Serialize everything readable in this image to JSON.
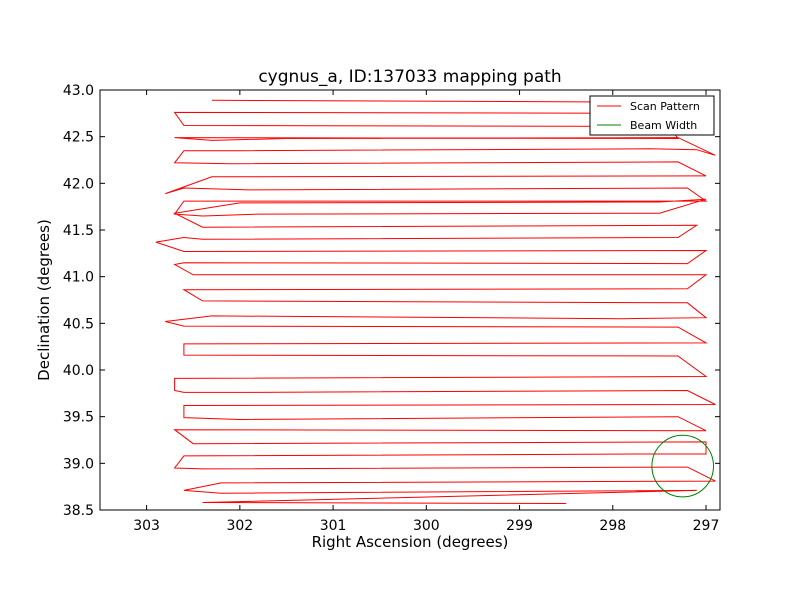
{
  "chart_data": {
    "type": "line",
    "title": "cygnus_a, ID:137033 mapping path",
    "xlabel": "Right Ascension (degrees)",
    "ylabel": "Declination (degrees)",
    "xlim": [
      303.5,
      296.85
    ],
    "ylim": [
      38.5,
      43.0
    ],
    "x_inverted": true,
    "xticks": [
      303,
      302,
      301,
      300,
      299,
      298,
      297
    ],
    "xtick_labels": [
      "303",
      "302",
      "301",
      "300",
      "299",
      "298",
      "297"
    ],
    "yticks": [
      38.5,
      39.0,
      39.5,
      40.0,
      40.5,
      41.0,
      41.5,
      42.0,
      42.5,
      43.0
    ],
    "ytick_labels": [
      "38.5",
      "39.0",
      "39.5",
      "40.0",
      "40.5",
      "41.0",
      "41.5",
      "42.0",
      "42.5",
      "43.0"
    ],
    "grid": false,
    "legend_position": "top-right",
    "series": [
      {
        "name": "Scan Pattern",
        "color": "#ff0000",
        "description_rows": 17,
        "points": [
          [
            302.3,
            42.89
          ],
          [
            297.7,
            42.87
          ],
          [
            297.3,
            42.75
          ],
          [
            302.7,
            42.76
          ],
          [
            302.6,
            42.62
          ],
          [
            297.4,
            42.61
          ],
          [
            297.3,
            42.48
          ],
          [
            302.7,
            42.49
          ],
          [
            302.3,
            42.46
          ],
          [
            301.5,
            42.48
          ],
          [
            297.3,
            42.49
          ],
          [
            296.9,
            42.3
          ],
          [
            297.1,
            42.36
          ],
          [
            297.6,
            42.37
          ],
          [
            302.0,
            42.35
          ],
          [
            302.6,
            42.35
          ],
          [
            302.7,
            42.22
          ],
          [
            302.1,
            42.21
          ],
          [
            297.3,
            42.23
          ],
          [
            297.0,
            42.08
          ],
          [
            302.3,
            42.07
          ],
          [
            302.8,
            41.89
          ],
          [
            302.6,
            41.95
          ],
          [
            301.9,
            41.93
          ],
          [
            297.2,
            41.95
          ],
          [
            297.0,
            41.81
          ],
          [
            302.6,
            41.81
          ],
          [
            302.7,
            41.67
          ],
          [
            302.4,
            41.65
          ],
          [
            301.8,
            41.67
          ],
          [
            297.5,
            41.68
          ],
          [
            297.0,
            41.83
          ],
          [
            297.5,
            41.8
          ],
          [
            302.0,
            41.79
          ],
          [
            302.7,
            41.68
          ],
          [
            302.4,
            41.53
          ],
          [
            297.1,
            41.55
          ],
          [
            297.3,
            41.42
          ],
          [
            302.4,
            41.4
          ],
          [
            302.6,
            41.42
          ],
          [
            302.9,
            41.37
          ],
          [
            302.6,
            41.27
          ],
          [
            297.0,
            41.28
          ],
          [
            297.2,
            41.14
          ],
          [
            302.6,
            41.15
          ],
          [
            302.7,
            41.13
          ],
          [
            302.5,
            41.02
          ],
          [
            297.0,
            41.02
          ],
          [
            297.2,
            40.87
          ],
          [
            302.6,
            40.86
          ],
          [
            302.4,
            40.74
          ],
          [
            297.2,
            40.72
          ],
          [
            297.0,
            40.56
          ],
          [
            297.9,
            40.55
          ],
          [
            302.3,
            40.58
          ],
          [
            302.8,
            40.52
          ],
          [
            302.6,
            40.47
          ],
          [
            297.3,
            40.46
          ],
          [
            297.0,
            40.29
          ],
          [
            302.6,
            40.28
          ],
          [
            302.6,
            40.16
          ],
          [
            297.3,
            40.15
          ],
          [
            297.0,
            39.93
          ],
          [
            302.7,
            39.91
          ],
          [
            302.7,
            39.78
          ],
          [
            302.6,
            39.76
          ],
          [
            302.0,
            39.76
          ],
          [
            297.2,
            39.78
          ],
          [
            296.9,
            39.63
          ],
          [
            302.6,
            39.62
          ],
          [
            302.6,
            39.49
          ],
          [
            302.0,
            39.47
          ],
          [
            297.3,
            39.5
          ],
          [
            297.0,
            39.35
          ],
          [
            302.7,
            39.36
          ],
          [
            302.5,
            39.21
          ],
          [
            297.0,
            39.23
          ],
          [
            297.0,
            39.1
          ],
          [
            297.6,
            39.1
          ],
          [
            302.6,
            39.08
          ],
          [
            302.7,
            38.95
          ],
          [
            302.4,
            38.94
          ],
          [
            297.2,
            38.96
          ],
          [
            296.9,
            38.81
          ],
          [
            302.2,
            38.79
          ],
          [
            302.6,
            38.71
          ],
          [
            302.2,
            38.68
          ],
          [
            297.1,
            38.71
          ],
          [
            302.4,
            38.58
          ],
          [
            298.5,
            38.57
          ]
        ]
      },
      {
        "name": "Beam Width",
        "color": "#008000",
        "shape": "circle",
        "center": [
          297.25,
          38.97
        ],
        "radius_deg": 0.33
      }
    ]
  },
  "legend": {
    "scan_label": "Scan Pattern",
    "beam_label": "Beam Width"
  }
}
